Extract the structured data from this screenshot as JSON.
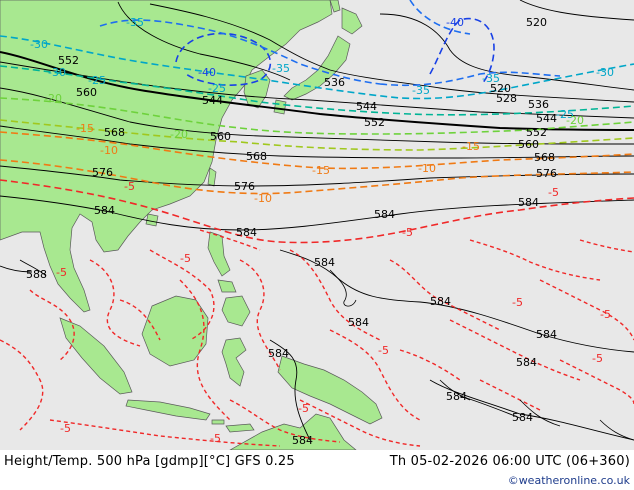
{
  "footer": {
    "title": "Height/Temp. 500 hPa [gdmp][°C] GFS 0.25",
    "valid_time": "Th 05-02-2026 06:00 UTC (06+360)",
    "credit": "©weatheronline.co.uk"
  },
  "colors": {
    "sea": "#e8e8e8",
    "land": "#a8e890",
    "height_contour": "#000000",
    "temp_minus40": "#1840e6",
    "temp_minus35": "#1e6ef0",
    "temp_minus30": "#00a6c8",
    "temp_minus25": "#00b496",
    "temp_minus20": "#6ed23c",
    "temp_minus15": "#a0c81e",
    "temp_minus10": "#f07a14",
    "temp_minus5": "#f02828"
  },
  "height_labels": [
    {
      "text": "552"
    },
    {
      "text": "560"
    },
    {
      "text": "568"
    },
    {
      "text": "576"
    },
    {
      "text": "584"
    },
    {
      "text": "544"
    },
    {
      "text": "536"
    },
    {
      "text": "544"
    },
    {
      "text": "552"
    },
    {
      "text": "560"
    },
    {
      "text": "568"
    },
    {
      "text": "576"
    },
    {
      "text": "584"
    },
    {
      "text": "584"
    },
    {
      "text": "520"
    },
    {
      "text": "520"
    },
    {
      "text": "528"
    },
    {
      "text": "536"
    },
    {
      "text": "544"
    },
    {
      "text": "552"
    },
    {
      "text": "560"
    },
    {
      "text": "568"
    },
    {
      "text": "576"
    },
    {
      "text": "584"
    },
    {
      "text": "588"
    },
    {
      "text": "584"
    },
    {
      "text": "584"
    },
    {
      "text": "584"
    },
    {
      "text": "584"
    },
    {
      "text": "584"
    },
    {
      "text": "584"
    },
    {
      "text": "584"
    },
    {
      "text": "584"
    },
    {
      "text": "584"
    }
  ],
  "temp_labels": [
    {
      "text": "-35"
    },
    {
      "text": "-40"
    },
    {
      "text": "-40"
    },
    {
      "text": "-35"
    },
    {
      "text": "-35"
    },
    {
      "text": "-35"
    },
    {
      "text": "-30"
    },
    {
      "text": "-30"
    },
    {
      "text": "-30"
    },
    {
      "text": "-25"
    },
    {
      "text": "-25"
    },
    {
      "text": "-25"
    },
    {
      "text": "-20"
    },
    {
      "text": "-20"
    },
    {
      "text": "-20"
    },
    {
      "text": "-15"
    },
    {
      "text": "-15"
    },
    {
      "text": "-15"
    },
    {
      "text": "-10"
    },
    {
      "text": "-10"
    },
    {
      "text": "-10"
    },
    {
      "text": "-5"
    },
    {
      "text": "-5"
    },
    {
      "text": "-5"
    },
    {
      "text": "-5"
    },
    {
      "text": "-5"
    },
    {
      "text": "-5"
    },
    {
      "text": "-5"
    },
    {
      "text": "-5"
    },
    {
      "text": "-5"
    },
    {
      "text": "-5"
    },
    {
      "text": "-5"
    },
    {
      "text": "-5"
    }
  ]
}
